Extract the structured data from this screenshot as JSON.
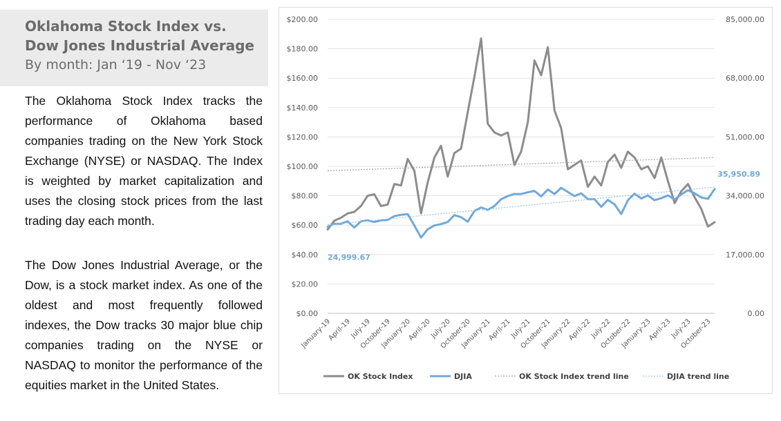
{
  "heading": {
    "title_line1": "Oklahoma Stock Index vs.",
    "title_line2": "Dow Jones Industrial Average",
    "subtitle": "By month: Jan ‘19 - Nov ‘23"
  },
  "paragraphs": {
    "p1": "The Oklahoma Stock Index tracks the performance of Oklahoma based companies trading on the New York Stock Exchange (NYSE) or NASDAQ. The Index is weighted by market capitalization and uses the closing stock prices from the last trading day each month.",
    "p2": "The Dow Jones Industrial Average, or the Dow, is a stock market index. As one of the oldest and most frequently followed indexes, the Dow tracks 30 major blue chip companies trading on the NYSE or NASDAQ to monitor the performance of the equities market in the United States."
  },
  "chart_data": {
    "type": "line",
    "title": "",
    "xlabel": "",
    "ylabel": "",
    "ylim": [
      0,
      200
    ],
    "y2lim": [
      0,
      85000
    ],
    "y_ticks": [
      "$0.00",
      "$20.00",
      "$40.00",
      "$60.00",
      "$80.00",
      "$100.00",
      "$120.00",
      "$140.00",
      "$160.00",
      "$180.00",
      "$200.00"
    ],
    "y2_ticks": [
      "0.00",
      "17,000.00",
      "34,000.00",
      "51,000.00",
      "68,000.00",
      "85,000.00"
    ],
    "x_tick_labels": [
      "January-19",
      "April-19",
      "July-19",
      "October-19",
      "January-20",
      "April-20",
      "July-20",
      "October-20",
      "January-21",
      "April-21",
      "July-21",
      "October-21",
      "January-22",
      "April-22",
      "July-22",
      "October-22",
      "January-23",
      "April-23",
      "July-23",
      "October-23"
    ],
    "grid": true,
    "legend_position": "bottom",
    "series": [
      {
        "name": "OK Stock Index",
        "axis": "left",
        "color": "#8c8c8c",
        "values": [
          57,
          63,
          65,
          68,
          69,
          73,
          80,
          81,
          73,
          74,
          88,
          87,
          105,
          97,
          68,
          89,
          106,
          114,
          93,
          109,
          112,
          137,
          161,
          187,
          129,
          123,
          121,
          123,
          101,
          110,
          130,
          172,
          162,
          181,
          138,
          126,
          98,
          101,
          104,
          86,
          93,
          87,
          103,
          108,
          99,
          110,
          106,
          98,
          100,
          92,
          106,
          90,
          75,
          83,
          88,
          79,
          71,
          59,
          62
        ]
      },
      {
        "name": "DJIA",
        "axis": "right",
        "color": "#6fa8dc",
        "values": [
          25000,
          25900,
          25900,
          26600,
          24800,
          26600,
          26900,
          26400,
          26900,
          27000,
          28100,
          28500,
          28700,
          25400,
          21900,
          24300,
          25400,
          25800,
          26400,
          28400,
          27800,
          26500,
          29600,
          30600,
          29900,
          31000,
          33000,
          33900,
          34500,
          34500,
          35000,
          35400,
          33800,
          35800,
          34500,
          36300,
          35100,
          33900,
          34700,
          33000,
          33000,
          30800,
          32800,
          31500,
          28700,
          32700,
          34600,
          33200,
          34100,
          32700,
          33300,
          34100,
          32900,
          34400,
          35600,
          34700,
          33500,
          33100,
          35950.89
        ]
      },
      {
        "name": "OK Stock Index trend line",
        "axis": "left",
        "style": "dotted",
        "color": "#a6a6a6",
        "values": [
          97,
          106
        ]
      },
      {
        "name": "DJIA trend line",
        "axis": "right",
        "style": "dotted",
        "color": "#9dc3e6",
        "values": [
          25600,
          36500
        ]
      }
    ],
    "annotations": {
      "djia_first": "24,999.67",
      "djia_last": "35,950.89"
    }
  }
}
